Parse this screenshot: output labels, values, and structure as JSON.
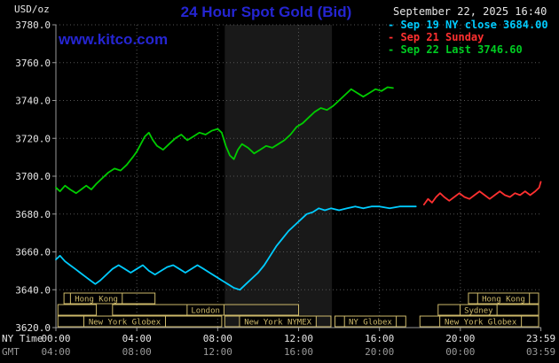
{
  "header": {
    "title": "24 Hour Spot Gold (Bid)",
    "datetime": "September 22, 2025 16:40",
    "watermark": "www.kitco.com",
    "y_unit": "USD/oz"
  },
  "legend": [
    {
      "marker": "-",
      "label": "Sep 19 NY close 3684.00",
      "color": "#00ccff"
    },
    {
      "marker": "-",
      "label": "Sep 21 Sunday",
      "color": "#ff3030"
    },
    {
      "marker": "-",
      "label": "Sep 22 Last 3746.60",
      "color": "#00cc22"
    }
  ],
  "colors": {
    "background": "#000000",
    "title_blue": "#2525d2",
    "watermark_blue": "#2525d2",
    "axis": "#999999",
    "grid": "#555555",
    "text_white": "#e6e6e6",
    "text_gray": "#9a9a9a",
    "session": "#cdb96a",
    "band": "#191919"
  },
  "chart_data": {
    "type": "line",
    "title": "24 Hour Spot Gold (Bid)",
    "y_axis": {
      "unit": "USD/oz",
      "min": 3620,
      "max": 3780,
      "step": 20,
      "ticks": [
        3620,
        3640,
        3660,
        3680,
        3700,
        3720,
        3740,
        3760,
        3780
      ]
    },
    "x_axis": {
      "ny_caption": "NY Time",
      "gmt_caption": "GMT",
      "tick_hours": [
        0,
        4,
        8,
        12,
        16,
        20,
        23.983
      ],
      "grid_hours": [
        4,
        8,
        12,
        16,
        20
      ],
      "ny_ticks": [
        "00:00",
        "04:00",
        "08:00",
        "12:00",
        "16:00",
        "20:00",
        "23:59"
      ],
      "gmt_ticks": [
        "04:00",
        "08:00",
        "12:00",
        "16:00",
        "20:00",
        "00:00",
        "03:59"
      ]
    },
    "band": {
      "from": 8.35,
      "to": 13.65
    },
    "series": [
      {
        "id": "sep19",
        "name": "Sep 19 NY close",
        "close": 3684.0,
        "color": "#00ccff",
        "points": [
          [
            0,
            3656
          ],
          [
            0.2,
            3658
          ],
          [
            0.45,
            3655
          ],
          [
            0.7,
            3653
          ],
          [
            0.95,
            3651
          ],
          [
            1.2,
            3649
          ],
          [
            1.45,
            3647
          ],
          [
            1.7,
            3645
          ],
          [
            1.95,
            3643
          ],
          [
            2.2,
            3645
          ],
          [
            2.5,
            3648
          ],
          [
            2.8,
            3651
          ],
          [
            3.1,
            3653
          ],
          [
            3.4,
            3651
          ],
          [
            3.7,
            3649
          ],
          [
            4,
            3651
          ],
          [
            4.3,
            3653
          ],
          [
            4.6,
            3650
          ],
          [
            4.9,
            3648
          ],
          [
            5.2,
            3650
          ],
          [
            5.5,
            3652
          ],
          [
            5.8,
            3653
          ],
          [
            6.1,
            3651
          ],
          [
            6.4,
            3649
          ],
          [
            6.7,
            3651
          ],
          [
            7,
            3653
          ],
          [
            7.3,
            3651
          ],
          [
            7.6,
            3649
          ],
          [
            7.9,
            3647
          ],
          [
            8.2,
            3645
          ],
          [
            8.5,
            3643
          ],
          [
            8.8,
            3641
          ],
          [
            9.1,
            3640
          ],
          [
            9.4,
            3643
          ],
          [
            9.7,
            3646
          ],
          [
            10,
            3649
          ],
          [
            10.3,
            3653
          ],
          [
            10.6,
            3658
          ],
          [
            10.9,
            3663
          ],
          [
            11.2,
            3667
          ],
          [
            11.5,
            3671
          ],
          [
            11.8,
            3674
          ],
          [
            12.1,
            3677
          ],
          [
            12.4,
            3680
          ],
          [
            12.7,
            3681
          ],
          [
            13,
            3683
          ],
          [
            13.3,
            3682
          ],
          [
            13.6,
            3683
          ],
          [
            14,
            3682
          ],
          [
            14.4,
            3683
          ],
          [
            14.8,
            3684
          ],
          [
            15.2,
            3683
          ],
          [
            15.6,
            3684
          ],
          [
            16,
            3684
          ],
          [
            16.5,
            3683
          ],
          [
            17,
            3684
          ],
          [
            17.4,
            3684
          ],
          [
            17.8,
            3684
          ]
        ]
      },
      {
        "id": "sep21",
        "name": "Sep 21 Sunday",
        "color": "#ff3030",
        "points": [
          [
            18.2,
            3685
          ],
          [
            18.4,
            3688
          ],
          [
            18.6,
            3686
          ],
          [
            18.8,
            3689
          ],
          [
            19,
            3691
          ],
          [
            19.2,
            3689
          ],
          [
            19.45,
            3687
          ],
          [
            19.7,
            3689
          ],
          [
            19.95,
            3691
          ],
          [
            20.2,
            3689
          ],
          [
            20.45,
            3688
          ],
          [
            20.7,
            3690
          ],
          [
            20.95,
            3692
          ],
          [
            21.2,
            3690
          ],
          [
            21.45,
            3688
          ],
          [
            21.7,
            3690
          ],
          [
            21.95,
            3692
          ],
          [
            22.2,
            3690
          ],
          [
            22.45,
            3689
          ],
          [
            22.7,
            3691
          ],
          [
            22.95,
            3690
          ],
          [
            23.2,
            3692
          ],
          [
            23.45,
            3690
          ],
          [
            23.7,
            3692
          ],
          [
            23.9,
            3694
          ],
          [
            23.98,
            3697
          ]
        ]
      },
      {
        "id": "sep22",
        "name": "Sep 22",
        "last": 3746.6,
        "color": "#00cc00",
        "points": [
          [
            0,
            3694
          ],
          [
            0.2,
            3692
          ],
          [
            0.45,
            3695
          ],
          [
            0.7,
            3693
          ],
          [
            1,
            3691
          ],
          [
            1.25,
            3693
          ],
          [
            1.5,
            3695
          ],
          [
            1.75,
            3693
          ],
          [
            2,
            3696
          ],
          [
            2.3,
            3699
          ],
          [
            2.6,
            3702
          ],
          [
            2.9,
            3704
          ],
          [
            3.2,
            3703
          ],
          [
            3.5,
            3706
          ],
          [
            3.8,
            3710
          ],
          [
            4,
            3713
          ],
          [
            4.2,
            3717
          ],
          [
            4.4,
            3721
          ],
          [
            4.6,
            3723
          ],
          [
            4.8,
            3719
          ],
          [
            5,
            3716
          ],
          [
            5.3,
            3714
          ],
          [
            5.6,
            3717
          ],
          [
            5.9,
            3720
          ],
          [
            6.2,
            3722
          ],
          [
            6.5,
            3719
          ],
          [
            6.8,
            3721
          ],
          [
            7.1,
            3723
          ],
          [
            7.4,
            3722
          ],
          [
            7.7,
            3724
          ],
          [
            8,
            3725
          ],
          [
            8.2,
            3723
          ],
          [
            8.4,
            3716
          ],
          [
            8.6,
            3711
          ],
          [
            8.8,
            3709
          ],
          [
            9,
            3714
          ],
          [
            9.2,
            3717
          ],
          [
            9.5,
            3715
          ],
          [
            9.8,
            3712
          ],
          [
            10.1,
            3714
          ],
          [
            10.4,
            3716
          ],
          [
            10.7,
            3715
          ],
          [
            11,
            3717
          ],
          [
            11.3,
            3719
          ],
          [
            11.6,
            3722
          ],
          [
            11.9,
            3726
          ],
          [
            12.2,
            3728
          ],
          [
            12.5,
            3731
          ],
          [
            12.8,
            3734
          ],
          [
            13.1,
            3736
          ],
          [
            13.4,
            3735
          ],
          [
            13.7,
            3737
          ],
          [
            14,
            3740
          ],
          [
            14.3,
            3743
          ],
          [
            14.6,
            3746
          ],
          [
            14.9,
            3744
          ],
          [
            15.2,
            3742
          ],
          [
            15.5,
            3744
          ],
          [
            15.8,
            3746
          ],
          [
            16.1,
            3745
          ],
          [
            16.4,
            3747
          ],
          [
            16.67,
            3746.6
          ]
        ]
      }
    ],
    "sessions": [
      {
        "row": 0,
        "from": 0.4,
        "to": 4.9,
        "label": "Hong Kong",
        "label_at": 2.0
      },
      {
        "row": 0,
        "from": 20.4,
        "to": 23.87,
        "label": "Hong Kong"
      },
      {
        "row": 1,
        "from": 0.1,
        "to": 2.0,
        "label": ""
      },
      {
        "row": 1,
        "from": 2.8,
        "to": 12.0,
        "label": "London"
      },
      {
        "row": 1,
        "from": 18.9,
        "to": 23.87,
        "label": "Sydney",
        "label_at": 20.9
      },
      {
        "row": 2,
        "from": 0.1,
        "to": 8.2,
        "label": "New York Globex",
        "label_at": 3.4
      },
      {
        "row": 2,
        "from": 8.35,
        "to": 13.6,
        "label": "New York NYMEX"
      },
      {
        "row": 2,
        "from": 13.8,
        "to": 17.3,
        "label": "NY Globex"
      },
      {
        "row": 2,
        "from": 18.0,
        "to": 23.87,
        "label": "New York Globex",
        "label_at": 21.0
      }
    ]
  }
}
